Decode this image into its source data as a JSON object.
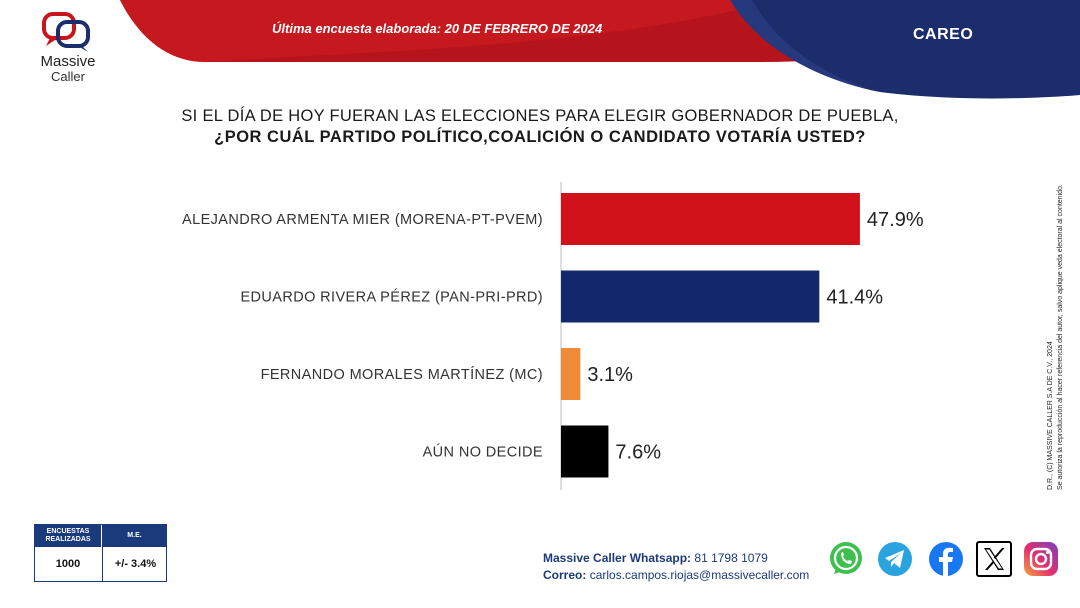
{
  "header": {
    "survey_date": "Última encuesta elaborada: 20 DE FEBRERO DE 2024",
    "tag": "CAREO"
  },
  "logo": {
    "line1": "Massive",
    "line2": "Caller"
  },
  "question": {
    "line1": "SI EL DÍA DE HOY FUERAN LAS ELECCIONES PARA ELEGIR GOBERNADOR DE PUEBLA,",
    "line2": "¿POR CUÁL PARTIDO POLÍTICO,COALICIÓN  O CANDIDATO VOTARÍA USTED?"
  },
  "chart_data": {
    "type": "bar",
    "orientation": "horizontal",
    "categories": [
      "ALEJANDRO ARMENTA MIER (MORENA-PT-PVEM)",
      "EDUARDO RIVERA PÉREZ (PAN-PRI-PRD)",
      "FERNANDO MORALES MARTÍNEZ (MC)",
      "AÚN NO DECIDE"
    ],
    "values": [
      47.9,
      41.4,
      3.1,
      7.6
    ],
    "labels": [
      "47.9%",
      "41.4%",
      "3.1%",
      "7.6%"
    ],
    "colors": [
      "#d1121b",
      "#13286b",
      "#ee8a38",
      "#000000"
    ],
    "xlim": [
      0,
      50
    ],
    "grid": false,
    "legend": "none"
  },
  "methodology": {
    "col1_header": "ENCUESTAS REALIZADAS",
    "col2_header": "M.E.",
    "col1_value": "1000",
    "col2_value": "+/- 3.4%"
  },
  "contact": {
    "whatsapp_label": "Massive Caller Whatsapp:",
    "whatsapp_value": "81 1798 1079",
    "email_label": "Correo:",
    "email_value": "carlos.campos.riojas@massivecaller.com"
  },
  "side_note": {
    "line1": "D.R., (C) MASSIVE CALLER S.A DE C.V., 2024",
    "line2": "Se autoriza la reproducción al hacer referencia del autor, salvo aplique veda electoral al contenido."
  },
  "social_icons": [
    "whatsapp-icon",
    "telegram-icon",
    "facebook-icon",
    "x-icon",
    "instagram-icon"
  ],
  "colors": {
    "header_red": "#c8151d",
    "header_navy": "#1b2d6b",
    "brand_blue": "#1b3a7c"
  }
}
